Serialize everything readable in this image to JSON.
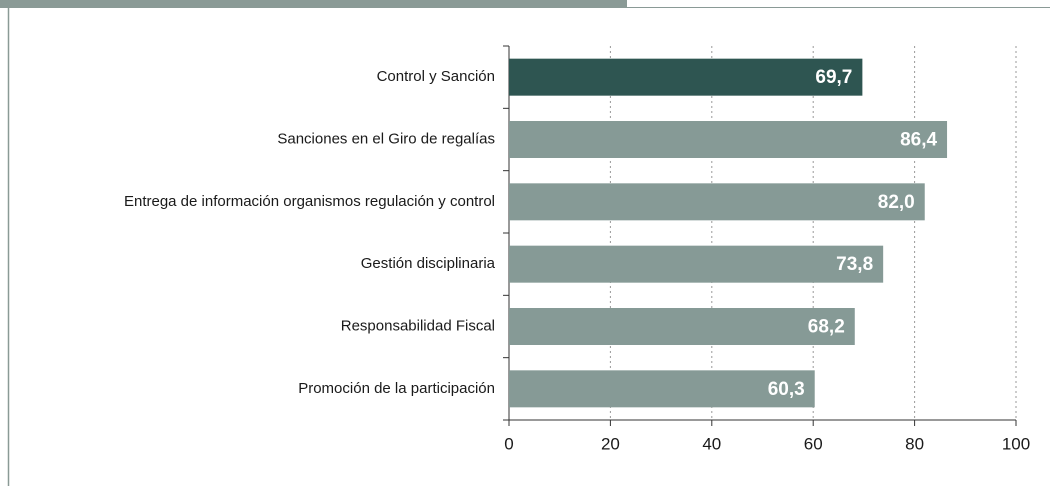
{
  "chart_data": {
    "type": "bar",
    "orientation": "horizontal",
    "categories": [
      "Control y Sanción",
      "Sanciones en el Giro de regalías",
      "Entrega de información organismos regulación y control",
      "Gestión disciplinaria",
      "Responsabilidad Fiscal",
      "Promoción de la participación"
    ],
    "values": [
      69.7,
      86.4,
      82.0,
      73.8,
      68.2,
      60.3
    ],
    "value_labels": [
      "69,7",
      "86,4",
      "82,0",
      "73,8",
      "68,2",
      "60,3"
    ],
    "colors": [
      "#2e5551",
      "#869a96",
      "#869a96",
      "#869a96",
      "#869a96",
      "#869a96"
    ],
    "xlim": [
      0,
      100
    ],
    "xticks": [
      0,
      20,
      40,
      60,
      80,
      100
    ],
    "grid": true
  }
}
